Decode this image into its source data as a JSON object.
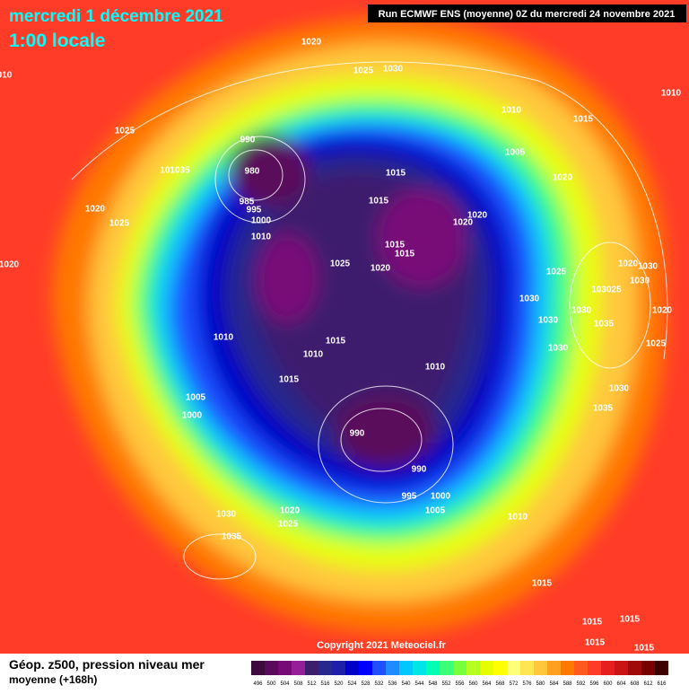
{
  "header": {
    "date": "mercredi 1 décembre 2021",
    "time": "1:00 locale",
    "run": "Run ECMWF ENS (moyenne) 0Z du mercredi 24 novembre 2021"
  },
  "isobar_labels": [
    "1020",
    "1025",
    "1030",
    "010",
    "1010",
    "1025",
    "1010",
    "1015",
    "990",
    "1005",
    "980",
    "1015",
    "1020",
    "101035",
    "985",
    "995",
    "1015",
    "1000",
    "1020",
    "1020",
    "1025",
    "1020",
    "1010",
    "1015",
    "1015",
    "1025",
    "1020",
    "1020",
    "1025",
    "1020",
    "1030",
    "1030",
    "1030",
    "103025",
    "1020",
    "1030",
    "1030",
    "1035",
    "1010",
    "1015",
    "1010",
    "1025",
    "1030",
    "1010",
    "1015",
    "1030",
    "1005",
    "1035",
    "1000",
    "990",
    "990",
    "995",
    "1000",
    "1005",
    "1020",
    "1010",
    "1030",
    "1025",
    "1035",
    "1015",
    "1015",
    "1015",
    "1015",
    "1015"
  ],
  "copyright": "Copyright 2021 Meteociel.fr",
  "legend": {
    "title": "Géop. z500, pression niveau mer",
    "subtitle": "moyenne  (+168h)"
  },
  "colorbar": {
    "labels": [
      496,
      500,
      504,
      508,
      512,
      516,
      520,
      524,
      528,
      532,
      536,
      540,
      544,
      548,
      552,
      556,
      560,
      564,
      568,
      572,
      576,
      580,
      584,
      588,
      592,
      596,
      600,
      604,
      608,
      612,
      616
    ],
    "colors": [
      "#3c0a3c",
      "#5a0a5a",
      "#780a78",
      "#961e96",
      "#3c1e6e",
      "#28288c",
      "#1e1eaa",
      "#0000c8",
      "#0000ff",
      "#1e50ff",
      "#1e8cff",
      "#00c8ff",
      "#00e6e6",
      "#00ffb4",
      "#3cff78",
      "#78ff3c",
      "#b4ff1e",
      "#e6ff00",
      "#ffff00",
      "#ffff78",
      "#ffe650",
      "#ffc83c",
      "#ffa01e",
      "#ff7800",
      "#ff5a1e",
      "#ff3c28",
      "#e61e1e",
      "#c81414",
      "#a00a0a",
      "#780000",
      "#3c0000"
    ]
  }
}
